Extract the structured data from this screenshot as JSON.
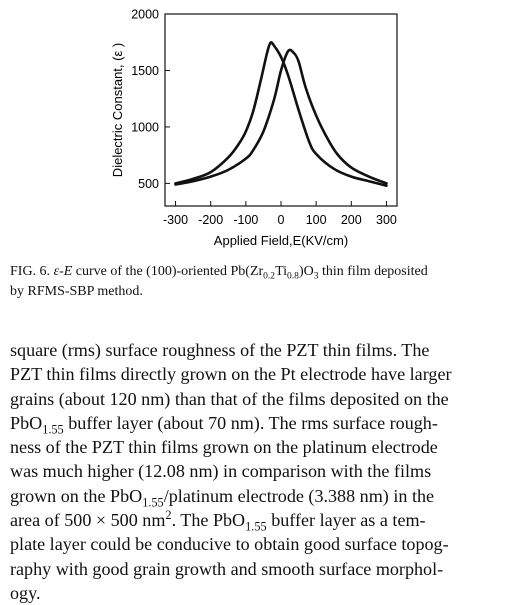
{
  "chart_data": {
    "type": "line",
    "xlabel": "Applied Field,E(KV/cm)",
    "ylabel": "Dielectric Constant, (ε )",
    "xlim": [
      -330,
      330
    ],
    "ylim": [
      300,
      2000
    ],
    "x_ticks": [
      "-300",
      "-200",
      "-100",
      "0",
      "100",
      "200",
      "300"
    ],
    "y_ticks": [
      "500",
      "1000",
      "1500",
      "2000"
    ],
    "series": [
      {
        "points": [
          [
            -300,
            500
          ],
          [
            -250,
            540
          ],
          [
            -200,
            600
          ],
          [
            -150,
            730
          ],
          [
            -120,
            850
          ],
          [
            -100,
            960
          ],
          [
            -80,
            1130
          ],
          [
            -60,
            1380
          ],
          [
            -40,
            1650
          ],
          [
            -30,
            1745
          ],
          [
            -20,
            1720
          ],
          [
            0,
            1620
          ],
          [
            20,
            1460
          ],
          [
            50,
            1150
          ],
          [
            80,
            870
          ],
          [
            100,
            760
          ],
          [
            150,
            630
          ],
          [
            200,
            560
          ],
          [
            250,
            520
          ],
          [
            300,
            480
          ]
        ]
      },
      {
        "points": [
          [
            -300,
            490
          ],
          [
            -250,
            520
          ],
          [
            -200,
            560
          ],
          [
            -150,
            620
          ],
          [
            -100,
            720
          ],
          [
            -80,
            790
          ],
          [
            -50,
            960
          ],
          [
            -20,
            1240
          ],
          [
            0,
            1500
          ],
          [
            20,
            1670
          ],
          [
            35,
            1660
          ],
          [
            50,
            1580
          ],
          [
            70,
            1350
          ],
          [
            100,
            1100
          ],
          [
            130,
            910
          ],
          [
            160,
            760
          ],
          [
            200,
            640
          ],
          [
            250,
            560
          ],
          [
            300,
            500
          ]
        ]
      }
    ]
  },
  "caption": {
    "fig_label": "FIG. 6.",
    "eps_e": "ε-E",
    "t1": " curve of the (100)-oriented Pb(Zr",
    "s1": "0.2",
    "t2": "Ti",
    "s2": "0.8",
    "t3": ")O",
    "s3": "3",
    "t4": " thin film deposited",
    "t5": "by RFMS-SBP method."
  },
  "body": {
    "l1": "square (rms) surface roughness of the PZT thin films. The",
    "l2": "PZT thin films directly grown on the Pt electrode have larger",
    "l3": "grains (about 120 nm) than that of the films deposited on the",
    "l4a": "PbO",
    "l4s": "1.55",
    "l4b": " buffer layer (about 70 nm). The rms surface rough-",
    "l5": "ness of the PZT thin films grown on the platinum electrode",
    "l6": "was much higher (12.08 nm) in comparison with the films",
    "l7a": "grown on the PbO",
    "l7s": "1.55",
    "l7b": "/platinum electrode (3.388 nm) in the",
    "l8a": "area of 500 × 500 nm",
    "l8sup": "2",
    "l8b": ". The PbO",
    "l8s": "1.55",
    "l8c": " buffer layer as a tem-",
    "l9": "plate layer could be conducive to obtain good surface topog-",
    "l10": "raphy with good grain growth and smooth surface morphol-",
    "l11": "ogy."
  }
}
